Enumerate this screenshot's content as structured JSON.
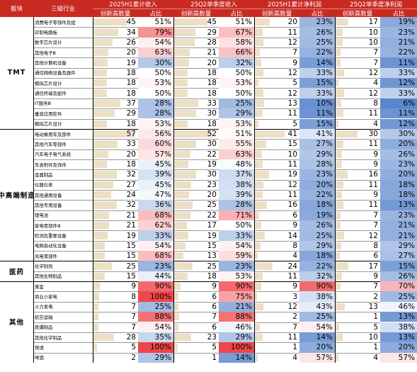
{
  "header": {
    "sector_col": "板块",
    "industry_col": "三级行业",
    "groups": [
      "2025H1累计收入",
      "25Q2单季度收入",
      "2025H1累计净利润",
      "25Q2单季度净利润"
    ],
    "sub_count": "创新高数量",
    "sub_ratio": "占比"
  },
  "colors": {
    "header_red": "#c82a22",
    "bar_beige": "#ecdfc6",
    "ratio_low": "#5a86cc",
    "ratio_mid": "#ffffff",
    "ratio_high": "#f0454a"
  },
  "chart_data": {
    "type": "table",
    "title": "",
    "columns": [
      "2025H1累计收入 创新高数量",
      "2025H1累计收入 占比",
      "25Q2单季度收入 创新高数量",
      "25Q2单季度收入 占比",
      "2025H1累计净利润 创新高数量",
      "2025H1累计净利润 占比",
      "25Q2单季度净利润 创新高数量",
      "25Q2单季度净利润 占比"
    ],
    "groups": [
      {
        "sector": "TMT",
        "rows": [
          {
            "industry": "消费电子零部件及组",
            "values": [
              45,
              "51%",
              45,
              "51%",
              20,
              "23%",
              17,
              "19%"
            ]
          },
          {
            "industry": "印制电路板",
            "values": [
              34,
              "79%",
              29,
              "67%",
              11,
              "26%",
              10,
              "23%"
            ]
          },
          {
            "industry": "数字芯片设计",
            "values": [
              26,
              "54%",
              28,
              "58%",
              12,
              "25%",
              10,
              "21%"
            ]
          },
          {
            "industry": "其他电子Ⅲ",
            "values": [
              20,
              "63%",
              21,
              "66%",
              7,
              "22%",
              7,
              "22%"
            ]
          },
          {
            "industry": "其他计算机设备",
            "values": [
              19,
              "30%",
              20,
              "32%",
              9,
              "14%",
              7,
              "11%"
            ]
          },
          {
            "industry": "通信网络设备及器件",
            "values": [
              18,
              "50%",
              18,
              "50%",
              12,
              "33%",
              12,
              "33%"
            ]
          },
          {
            "industry": "模拟芯片设计",
            "values": [
              18,
              "53%",
              18,
              "53%",
              5,
              "15%",
              4,
              "12%"
            ]
          },
          {
            "industry": "通信终端及配件",
            "values": [
              18,
              "50%",
              18,
              "50%",
              12,
              "33%",
              12,
              "33%"
            ]
          },
          {
            "industry": "IT服务Ⅲ",
            "values": [
              37,
              "28%",
              33,
              "25%",
              13,
              "10%",
              8,
              "6%"
            ]
          },
          {
            "industry": "垂直应用软件",
            "values": [
              29,
              "28%",
              30,
              "29%",
              11,
              "11%",
              11,
              "11%"
            ]
          },
          {
            "industry": "模拟芯片设计",
            "values": [
              18,
              "53%",
              18,
              "53%",
              5,
              "15%",
              4,
              "12%"
            ]
          }
        ]
      },
      {
        "sector": "中高端制造",
        "rows": [
          {
            "industry": "电动乘用车及部件",
            "values": [
              57,
              "56%",
              52,
              "51%",
              41,
              "41%",
              30,
              "30%"
            ]
          },
          {
            "industry": "其他汽车零部件",
            "values": [
              33,
              "60%",
              30,
              "55%",
              15,
              "27%",
              11,
              "20%"
            ]
          },
          {
            "industry": "汽车电子电气系统",
            "values": [
              20,
              "57%",
              22,
              "63%",
              10,
              "29%",
              9,
              "26%"
            ]
          },
          {
            "industry": "车身附件及饰件",
            "values": [
              18,
              "45%",
              19,
              "48%",
              11,
              "28%",
              9,
              "23%"
            ]
          },
          {
            "industry": "金属制品",
            "values": [
              32,
              "39%",
              30,
              "37%",
              19,
              "23%",
              16,
              "20%"
            ]
          },
          {
            "industry": "仪器仪表",
            "values": [
              27,
              "45%",
              23,
              "38%",
              12,
              "20%",
              11,
              "18%"
            ]
          },
          {
            "industry": "其他通用设备",
            "values": [
              24,
              "47%",
              20,
              "39%",
              11,
              "22%",
              9,
              "18%"
            ]
          },
          {
            "industry": "其他专用设备",
            "values": [
              32,
              "36%",
              25,
              "28%",
              16,
              "18%",
              11,
              "13%"
            ]
          },
          {
            "industry": "锂电池",
            "values": [
              21,
              "68%",
              22,
              "71%",
              6,
              "19%",
              7,
              "23%"
            ]
          },
          {
            "industry": "家电零部件Ⅲ",
            "values": [
              21,
              "62%",
              17,
              "50%",
              9,
              "26%",
              7,
              "21%"
            ]
          },
          {
            "industry": "检测及重要设备",
            "values": [
              19,
              "33%",
              19,
              "33%",
              14,
              "25%",
              12,
              "21%"
            ]
          },
          {
            "industry": "电网自动化设备",
            "values": [
              15,
              "54%",
              15,
              "54%",
              8,
              "29%",
              8,
              "29%"
            ]
          },
          {
            "industry": "风电零部件",
            "values": [
              15,
              "68%",
              13,
              "59%",
              4,
              "18%",
              6,
              "27%"
            ]
          }
        ]
      },
      {
        "sector": "医药",
        "rows": [
          {
            "industry": "化学制剂",
            "values": [
              25,
              "23%",
              25,
              "23%",
              24,
              "22%",
              17,
              "15%"
            ]
          },
          {
            "industry": "其他生物制品",
            "values": [
              15,
              "44%",
              18,
              "53%",
              11,
              "32%",
              9,
              "26%"
            ]
          }
        ]
      },
      {
        "sector": "其他",
        "rows": [
          {
            "industry": "黄金",
            "values": [
              9,
              "90%",
              9,
              "90%",
              9,
              "90%",
              7,
              "70%"
            ]
          },
          {
            "industry": "商业小家电",
            "values": [
              8,
              "100%",
              6,
              "75%",
              3,
              "38%",
              2,
              "25%"
            ]
          },
          {
            "industry": "火力发电",
            "values": [
              7,
              "25%",
              6,
              "21%",
              12,
              "43%",
              13,
              "46%"
            ]
          },
          {
            "industry": "航空运输",
            "values": [
              7,
              "88%",
              7,
              "88%",
              2,
              "25%",
              1,
              "13%"
            ]
          },
          {
            "industry": "民爆制品",
            "values": [
              7,
              "54%",
              6,
              "46%",
              7,
              "54%",
              5,
              "38%"
            ]
          },
          {
            "industry": "其他化学制品",
            "values": [
              28,
              "35%",
              23,
              "29%",
              11,
              "14%",
              10,
              "13%"
            ]
          },
          {
            "industry": "快递",
            "values": [
              5,
              "100%",
              5,
              "100%",
              1,
              "20%",
              1,
              "20%"
            ]
          },
          {
            "industry": "啤酒",
            "values": [
              2,
              "29%",
              1,
              "14%",
              4,
              "57%",
              4,
              "57%"
            ]
          }
        ]
      }
    ]
  }
}
